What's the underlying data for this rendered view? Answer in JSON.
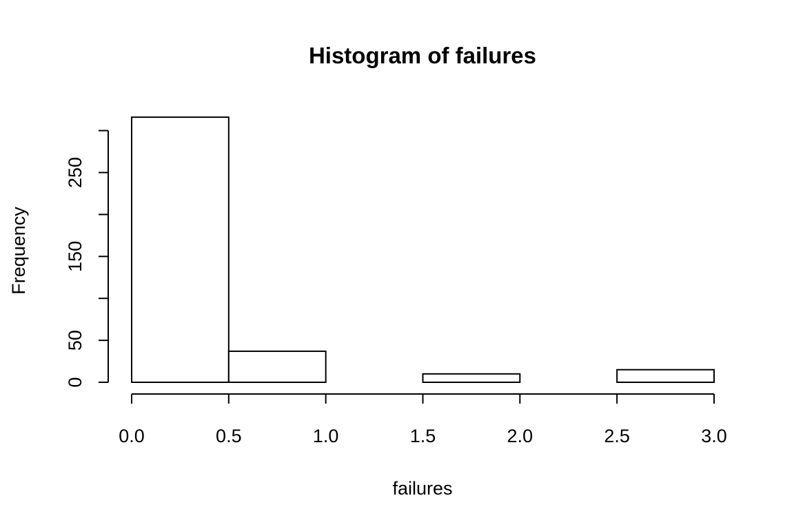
{
  "chart_data": {
    "type": "bar",
    "title": "Histogram of failures",
    "xlabel": "failures",
    "ylabel": "Frequency",
    "bins": [
      {
        "from": 0.0,
        "to": 0.5,
        "value": 316
      },
      {
        "from": 0.5,
        "to": 1.0,
        "value": 37
      },
      {
        "from": 1.0,
        "to": 1.5,
        "value": 0
      },
      {
        "from": 1.5,
        "to": 2.0,
        "value": 10
      },
      {
        "from": 2.0,
        "to": 2.5,
        "value": 0
      },
      {
        "from": 2.5,
        "to": 3.0,
        "value": 15
      }
    ],
    "xlim": [
      0,
      3
    ],
    "ylim": [
      0,
      316
    ],
    "x_ticks": [
      0.0,
      0.5,
      1.0,
      1.5,
      2.0,
      2.5,
      3.0
    ],
    "x_tick_labels": [
      "0.0",
      "0.5",
      "1.0",
      "1.5",
      "2.0",
      "2.5",
      "3.0"
    ],
    "y_ticks": [
      0,
      50,
      100,
      150,
      200,
      250,
      300
    ],
    "y_tick_labels": [
      "0",
      "50",
      "",
      "150",
      "",
      "250",
      ""
    ],
    "grid": false,
    "colors": {
      "bar_fill": "#ffffff",
      "bar_stroke": "#000000"
    }
  }
}
